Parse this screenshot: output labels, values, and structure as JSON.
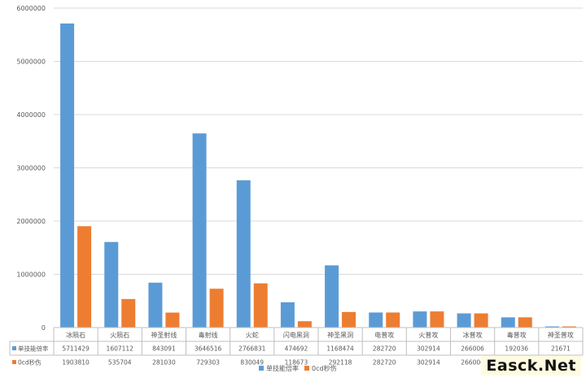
{
  "chart_data": {
    "type": "bar",
    "categories": [
      "冰陨石",
      "火陨石",
      "神圣射线",
      "毒射线",
      "火蛇",
      "闪电黑洞",
      "神圣黑洞",
      "电普攻",
      "火普攻",
      "冰普攻",
      "毒普攻",
      "神圣普攻"
    ],
    "series": [
      {
        "name": "单技能倍率",
        "color": "#5B9BD5",
        "values": [
          5711429,
          1607112,
          843091,
          3646516,
          2766831,
          474692,
          1168474,
          282720,
          302914,
          266006,
          192036,
          21671
        ]
      },
      {
        "name": "0cd秒伤",
        "color": "#ED7D31",
        "values": [
          1903810,
          535704,
          281030,
          729303,
          830049,
          118673,
          292118,
          282720,
          302914,
          266006,
          192036,
          21671
        ]
      }
    ],
    "ylim": [
      0,
      6000000
    ],
    "yticks": [
      "0",
      "1000000",
      "2000000",
      "3000000",
      "4000000",
      "5000000",
      "6000000"
    ],
    "grid": true,
    "legend_position": "bottom",
    "data_table": true
  },
  "watermark": "Easck.Net"
}
